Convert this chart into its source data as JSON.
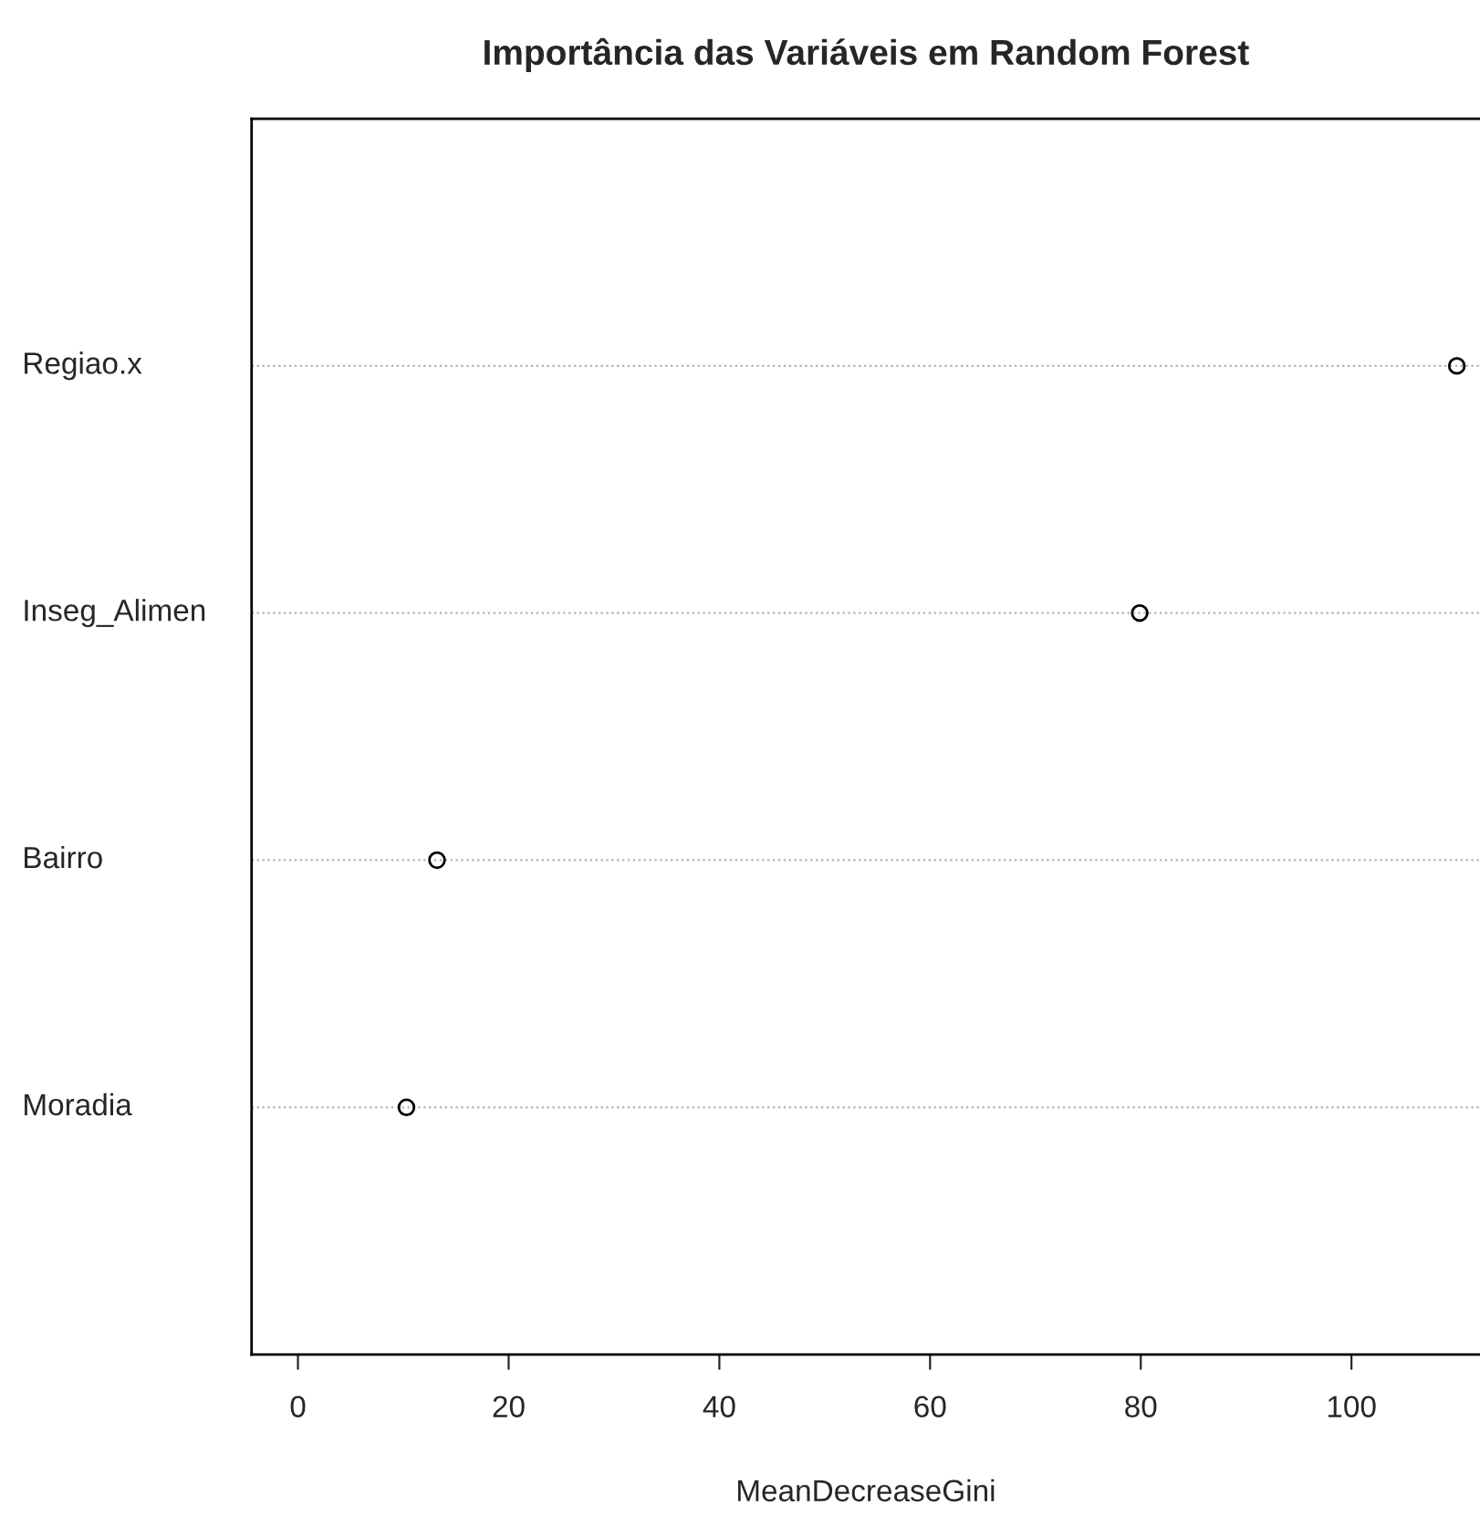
{
  "chart_data": {
    "type": "scatter",
    "orientation": "horizontal",
    "title": "Importância das Variáveis em Random Forest",
    "xlabel": "MeanDecreaseGini",
    "categories": [
      "Regiao.x",
      "Inseg_Alimen",
      "Bairro",
      "Moradia"
    ],
    "values": [
      110.0,
      79.9,
      13.2,
      10.3
    ],
    "color": "#000000",
    "marker": "circle",
    "grid": "y",
    "line_style": "dotted",
    "xlim": [
      -4.4,
      112.2
    ],
    "xticks": [
      0,
      20,
      40,
      60,
      80,
      100
    ]
  }
}
